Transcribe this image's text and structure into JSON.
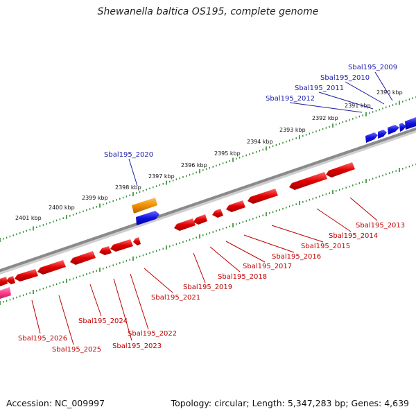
{
  "title": "Shewanella baltica OS195, complete genome",
  "footer": {
    "accession": "Accession: NC_009997",
    "summary": "Topology: circular; Length: 5,347,283 bp; Genes: 4,639"
  },
  "colors": {
    "backbone": "#8a8a8a",
    "tick": "#2a8a2a",
    "gene_forward": "#1010e0",
    "gene_reverse": "#e00000",
    "gene_orange": "#f09000",
    "gene_pink": "#ff3b8a",
    "label_forward": "#1a1aa8",
    "label_reverse": "#c00000"
  },
  "ruler_labels": [
    "2390 kbp",
    "2391 kbp",
    "2392 kbp",
    "2393 kbp",
    "2394 kbp",
    "2395 kbp",
    "2396 kbp",
    "2397 kbp",
    "2398 kbp",
    "2399 kbp",
    "2400 kbp",
    "2401 kbp"
  ],
  "gene_labels_forward": [
    "Sbal195_2009",
    "Sbal195_2010",
    "Sbal195_2011",
    "Sbal195_2012",
    "Sbal195_2020"
  ],
  "gene_labels_reverse": [
    "Sbal195_2013",
    "Sbal195_2014",
    "Sbal195_2015",
    "Sbal195_2016",
    "Sbal195_2017",
    "Sbal195_2018",
    "Sbal195_2019",
    "Sbal195_2021",
    "Sbal195_2022",
    "Sbal195_2023",
    "Sbal195_2024",
    "Sbal195_2025",
    "Sbal195_2026"
  ]
}
